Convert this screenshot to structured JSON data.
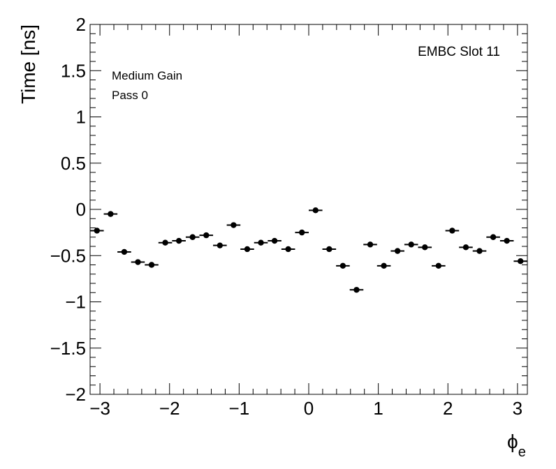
{
  "chart_data": {
    "type": "scatter",
    "title": "",
    "xlabel": "ϕ",
    "xlabel_sub": "e",
    "ylabel": "Time [ns]",
    "xlim": [
      -3.1416,
      3.1416
    ],
    "ylim": [
      -2,
      2
    ],
    "x_ticks": [
      -3,
      -2,
      -1,
      0,
      1,
      2,
      3
    ],
    "x_tick_labels": [
      "−3",
      "−2",
      "−1",
      "0",
      "1",
      "2",
      "3"
    ],
    "y_ticks": [
      -2,
      -1.5,
      -1,
      -0.5,
      0,
      0.5,
      1,
      1.5,
      2
    ],
    "y_tick_labels": [
      "−2",
      "−1.5",
      "−1",
      "−0.5",
      "0",
      "0.5",
      "1",
      "1.5",
      "2"
    ],
    "x_bin_width": 0.19635,
    "grid": false,
    "marker_color": "#000000",
    "annotations": {
      "top_right": "EMBC Slot 11",
      "line1": "Medium Gain",
      "line2": "Pass 0"
    },
    "series": [
      {
        "x": [
          -3.0434,
          -2.8471,
          -2.6507,
          -2.4544,
          -2.258,
          -2.0617,
          -1.8653,
          -1.669,
          -1.4726,
          -1.2763,
          -1.0799,
          -0.8836,
          -0.6872,
          -0.4909,
          -0.2945,
          -0.0982,
          0.0982,
          0.2945,
          0.4909,
          0.6872,
          0.8836,
          1.0799,
          1.2763,
          1.4726,
          1.669,
          1.8653,
          2.0617,
          2.258,
          2.4544,
          2.6507,
          2.8471,
          3.0434
        ],
        "y": [
          -0.23,
          -0.05,
          -0.46,
          -0.57,
          -0.6,
          -0.36,
          -0.34,
          -0.3,
          -0.28,
          -0.39,
          -0.17,
          -0.43,
          -0.36,
          -0.34,
          -0.43,
          -0.25,
          -0.01,
          -0.43,
          -0.61,
          -0.87,
          -0.38,
          -0.61,
          -0.45,
          -0.38,
          -0.41,
          -0.61,
          -0.23,
          -0.41,
          -0.45,
          -0.3,
          -0.34,
          -0.56
        ]
      }
    ]
  }
}
